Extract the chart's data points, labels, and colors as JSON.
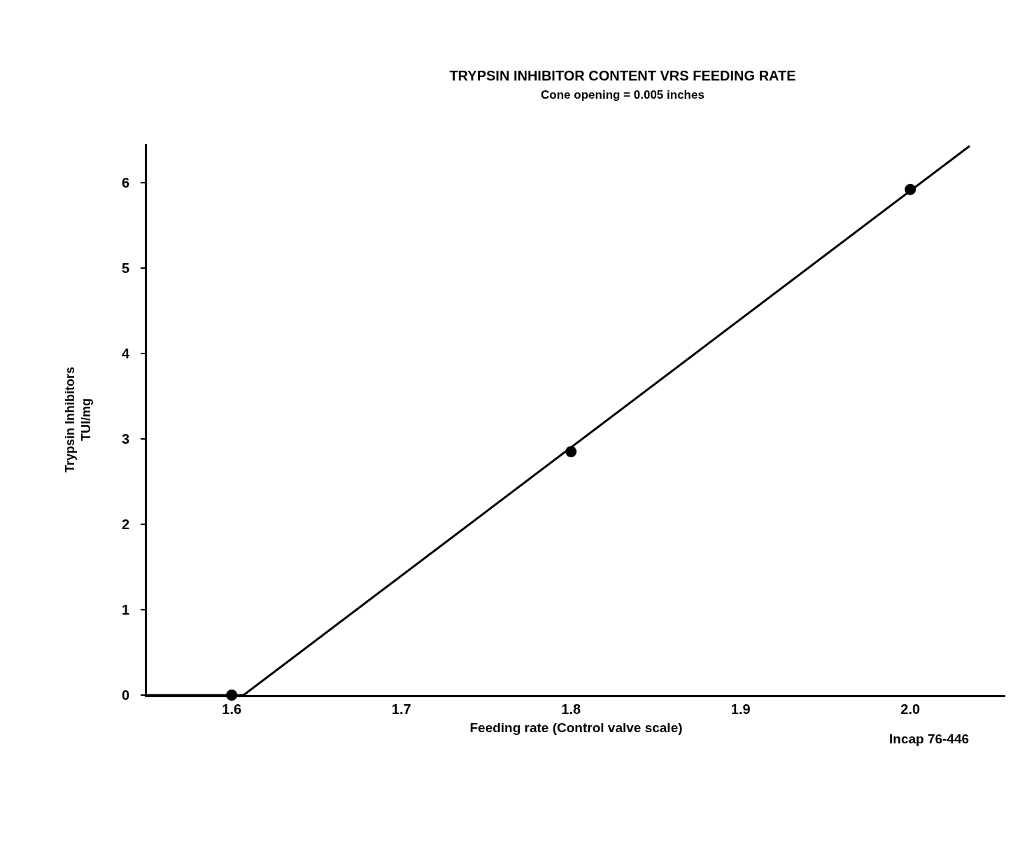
{
  "chart_data": {
    "type": "scatter",
    "title": "TRYPSIN INHIBITOR CONTENT VRS FEEDING RATE",
    "subtitle": "Cone opening = 0.005 inches",
    "xlabel": "Feeding rate (Control valve scale)",
    "ylabel": "Trypsin Inhibitors\nTUI/mg",
    "annotations": [
      "Incap 76-446"
    ],
    "series": [
      {
        "color": "#000000",
        "x": [
          1.6,
          1.8,
          2.0
        ],
        "values": [
          0,
          2.85,
          5.92
        ],
        "marker": "circle"
      },
      {
        "type": "line",
        "color": "#000000",
        "x": [
          1.55,
          1.607,
          2.035
        ],
        "values": [
          0,
          0,
          6.43
        ],
        "marker": "none",
        "line_style": "solid"
      }
    ],
    "xlim": [
      1.55,
      2.056
    ],
    "ylim": [
      0,
      6.45
    ],
    "xticks": [
      1.6,
      1.7,
      1.8,
      1.9,
      {
        "value": 2.0,
        "label": "2.0"
      }
    ],
    "yticks": [
      0,
      1,
      2,
      3,
      4,
      5,
      6
    ]
  }
}
